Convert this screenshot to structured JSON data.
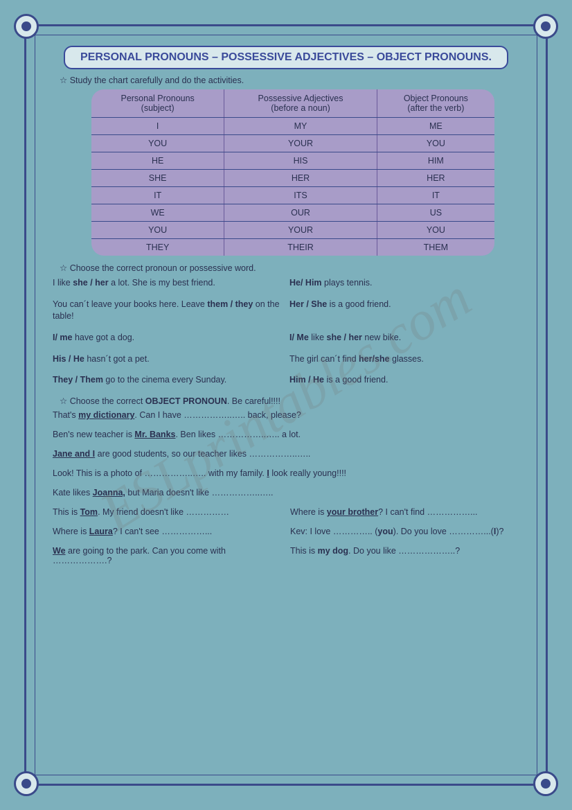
{
  "colors": {
    "page_bg": "#7db0bc",
    "frame_border": "#3a4a8a",
    "corner_fill": "#d8e8ec",
    "title_bg": "#d8e8ec",
    "title_text": "#3a4a9a",
    "body_text": "#2a3050",
    "table_bg": "#a89cc8",
    "watermark": "rgba(120,120,120,0.22)"
  },
  "title": "PERSONAL PRONOUNS – POSSESSIVE ADJECTIVES – OBJECT PRONOUNS.",
  "instruction1": "Study the chart carefully and do the activities.",
  "chart": {
    "headers": [
      {
        "line1": "Personal Pronouns",
        "line2": "(subject)"
      },
      {
        "line1": "Possessive Adjectives",
        "line2": "(before a noun)"
      },
      {
        "line1": "Object Pronouns",
        "line2": "(after the verb)"
      }
    ],
    "rows": [
      [
        "I",
        "MY",
        "ME"
      ],
      [
        "YOU",
        "YOUR",
        "YOU"
      ],
      [
        "HE",
        "HIS",
        "HIM"
      ],
      [
        "SHE",
        "HER",
        "HER"
      ],
      [
        "IT",
        "ITS",
        "IT"
      ],
      [
        "WE",
        "OUR",
        "US"
      ],
      [
        "YOU",
        "YOUR",
        "YOU"
      ],
      [
        "THEY",
        "THEIR",
        "THEM"
      ]
    ]
  },
  "instruction2": "Choose the correct pronoun or possessive word.",
  "exercise1": {
    "left": [
      {
        "pre": "I like ",
        "bold": "she / her",
        "post": " a lot. She is my best friend."
      },
      {
        "pre": "You can´t leave your books here. Leave ",
        "bold": "them / they",
        "post": " on the table!"
      },
      {
        "pre": "",
        "bold": "I/ me",
        "post": " have got a dog."
      },
      {
        "pre": "",
        "bold": "His / He",
        "post": " hasn´t got a pet."
      },
      {
        "pre": "",
        "bold": "They / Them",
        "post": " go to the cinema every Sunday."
      }
    ],
    "right": [
      {
        "pre": "",
        "bold": "He/ Him",
        "post": " plays tennis."
      },
      {
        "pre": "",
        "bold": "Her / She",
        "post": " is a good friend."
      },
      {
        "pre": "",
        "bold": "I/ Me",
        "post": " like ",
        "bold2": "she / her",
        "post2": " new bike."
      },
      {
        "pre": "The girl can´t find ",
        "bold": "her/she",
        "post": " glasses."
      },
      {
        "pre": "",
        "bold": "Him / He",
        "post": " is a good friend."
      }
    ]
  },
  "instruction3_pre": "Choose the correct ",
  "instruction3_bold": "OBJECT PRONOUN",
  "instruction3_post": ". Be careful!!!!",
  "exercise2": {
    "full": [
      {
        "t1": "That's ",
        "bu1": "my dictionary",
        "t2": ". Can I have ……………..….. back, please?"
      },
      {
        "t1": "Ben's new teacher is ",
        "bu1": "Mr. Banks",
        "t2": ". Ben likes ……………..….. a lot."
      },
      {
        "bu1": "Jane and I",
        "t2": " are good students, so our teacher likes ……………..…..",
        "t1": ""
      },
      {
        "t1": "Look! This is a photo of ……………..….. with my family. ",
        "bu1": "I",
        "t2": " look really young!!!!"
      },
      {
        "t1": "Kate likes ",
        "bu1": "Joanna,",
        "t2": " but Maria doesn't like ……………..….."
      }
    ],
    "pairs": [
      {
        "l": {
          "t1": "This is ",
          "bu1": "Tom",
          "t2": ". My friend doesn't like ……………"
        },
        "r": {
          "t1": "Where is ",
          "bu1": "your brother",
          "t2": "? I can't find ……………..."
        }
      },
      {
        "l": {
          "t1": "Where is ",
          "bu1": "Laura",
          "t2": "? I can't see ……………..."
        },
        "r": {
          "t1": "Kev: I love ………….. (",
          "b1": "you",
          "t2": "). Do you love …………...(",
          "b2": "I",
          "t3": ")?"
        }
      },
      {
        "l": {
          "bu1": "We",
          "t2": " are going to the park. Can you come with ……………….?",
          "t1": ""
        },
        "r": {
          "t1": "This is ",
          "b1": "my dog",
          "t2": ". Do you like ………………..?"
        }
      }
    ]
  },
  "watermark": "ESLprintables.com"
}
